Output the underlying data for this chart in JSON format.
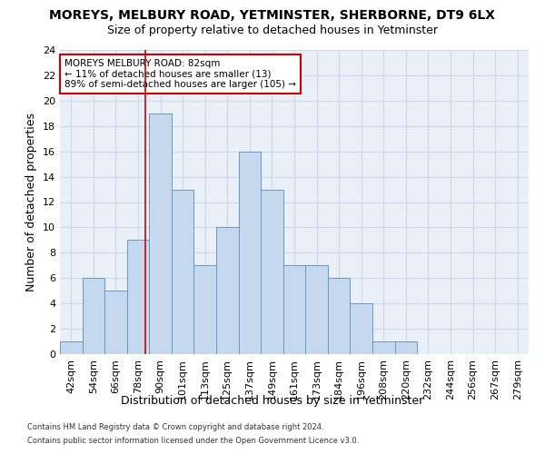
{
  "title1": "MOREYS, MELBURY ROAD, YETMINSTER, SHERBORNE, DT9 6LX",
  "title2": "Size of property relative to detached houses in Yetminster",
  "xlabel": "Distribution of detached houses by size in Yetminster",
  "ylabel": "Number of detached properties",
  "footer1": "Contains HM Land Registry data © Crown copyright and database right 2024.",
  "footer2": "Contains public sector information licensed under the Open Government Licence v3.0.",
  "bin_labels": [
    "42sqm",
    "54sqm",
    "66sqm",
    "78sqm",
    "90sqm",
    "101sqm",
    "113sqm",
    "125sqm",
    "137sqm",
    "149sqm",
    "161sqm",
    "173sqm",
    "184sqm",
    "196sqm",
    "208sqm",
    "220sqm",
    "232sqm",
    "244sqm",
    "256sqm",
    "267sqm",
    "279sqm"
  ],
  "bar_values": [
    1,
    6,
    5,
    9,
    19,
    13,
    7,
    10,
    16,
    13,
    7,
    7,
    6,
    4,
    1,
    1,
    0,
    0,
    0,
    0,
    0
  ],
  "bar_color": "#c5d8ed",
  "bar_edge_color": "#6899c0",
  "red_line_index": 3.333,
  "red_line_color": "#cc0000",
  "annotation_text": "MOREYS MELBURY ROAD: 82sqm\n← 11% of detached houses are smaller (13)\n89% of semi-detached houses are larger (105) →",
  "annotation_box_color": "#ffffff",
  "annotation_box_edge": "#cc0000",
  "ylim": [
    0,
    24
  ],
  "yticks": [
    0,
    2,
    4,
    6,
    8,
    10,
    12,
    14,
    16,
    18,
    20,
    22,
    24
  ],
  "title1_fontsize": 10,
  "title2_fontsize": 9,
  "xlabel_fontsize": 9,
  "ylabel_fontsize": 9,
  "tick_fontsize": 8,
  "annot_fontsize": 7.5,
  "footer_fontsize": 6,
  "grid_color": "#d0d8e8",
  "background_color": "#eaf0f8"
}
